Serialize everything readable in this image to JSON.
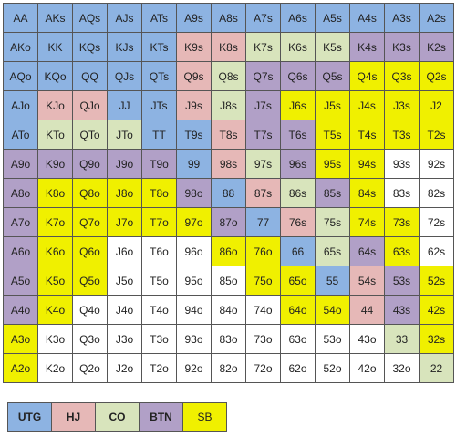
{
  "grid": {
    "rows": [
      [
        "AA",
        "AKs",
        "AQs",
        "AJs",
        "ATs",
        "A9s",
        "A8s",
        "A7s",
        "A6s",
        "A5s",
        "A4s",
        "A3s",
        "A2s"
      ],
      [
        "AKo",
        "KK",
        "KQs",
        "KJs",
        "KTs",
        "K9s",
        "K8s",
        "K7s",
        "K6s",
        "K5s",
        "K4s",
        "K3s",
        "K2s"
      ],
      [
        "AQo",
        "KQo",
        "QQ",
        "QJs",
        "QTs",
        "Q9s",
        "Q8s",
        "Q7s",
        "Q6s",
        "Q5s",
        "Q4s",
        "Q3s",
        "Q2s"
      ],
      [
        "AJo",
        "KJo",
        "QJo",
        "JJ",
        "JTs",
        "J9s",
        "J8s",
        "J7s",
        "J6s",
        "J5s",
        "J4s",
        "J3s",
        "J2"
      ],
      [
        "ATo",
        "KTo",
        "QTo",
        "JTo",
        "TT",
        "T9s",
        "T8s",
        "T7s",
        "T6s",
        "T5s",
        "T4s",
        "T3s",
        "T2s"
      ],
      [
        "A9o",
        "K9o",
        "Q9o",
        "J9o",
        "T9o",
        "99",
        "98s",
        "97s",
        "96s",
        "95s",
        "94s",
        "93s",
        "92s"
      ],
      [
        "A8o",
        "K8o",
        "Q8o",
        "J8o",
        "T8o",
        "98o",
        "88",
        "87s",
        "86s",
        "85s",
        "84s",
        "83s",
        "82s"
      ],
      [
        "A7o",
        "K7o",
        "Q7o",
        "J7o",
        "T7o",
        "97o",
        "87o",
        "77",
        "76s",
        "75s",
        "74s",
        "73s",
        "72s"
      ],
      [
        "A6o",
        "K6o",
        "Q6o",
        "J6o",
        "T6o",
        "96o",
        "86o",
        "76o",
        "66",
        "65s",
        "64s",
        "63s",
        "62s"
      ],
      [
        "A5o",
        "K5o",
        "Q5o",
        "J5o",
        "T5o",
        "95o",
        "85o",
        "75o",
        "65o",
        "55",
        "54s",
        "53s",
        "52s"
      ],
      [
        "A4o",
        "K4o",
        "Q4o",
        "J4o",
        "T4o",
        "94o",
        "84o",
        "74o",
        "64o",
        "54o",
        "44",
        "43s",
        "42s"
      ],
      [
        "A3o",
        "K3o",
        "Q3o",
        "J3o",
        "T3o",
        "93o",
        "83o",
        "73o",
        "63o",
        "53o",
        "43o",
        "33",
        "32s"
      ],
      [
        "A2o",
        "K2o",
        "Q2o",
        "J2o",
        "T2o",
        "92o",
        "82o",
        "72o",
        "62o",
        "52o",
        "42o",
        "32o",
        "22"
      ]
    ],
    "colors": [
      [
        "#8db3e2",
        "#8db3e2",
        "#8db3e2",
        "#8db3e2",
        "#8db3e2",
        "#8db3e2",
        "#8db3e2",
        "#8db3e2",
        "#8db3e2",
        "#8db3e2",
        "#8db3e2",
        "#8db3e2",
        "#8db3e2"
      ],
      [
        "#8db3e2",
        "#8db3e2",
        "#8db3e2",
        "#8db3e2",
        "#8db3e2",
        "#e6b8b7",
        "#e6b8b7",
        "#d8e4bc",
        "#d8e4bc",
        "#d8e4bc",
        "#b1a0c7",
        "#b1a0c7",
        "#b1a0c7"
      ],
      [
        "#8db3e2",
        "#8db3e2",
        "#8db3e2",
        "#8db3e2",
        "#8db3e2",
        "#e6b8b7",
        "#d8e4bc",
        "#b1a0c7",
        "#b1a0c7",
        "#b1a0c7",
        "#f0f000",
        "#f0f000",
        "#f0f000"
      ],
      [
        "#8db3e2",
        "#e6b8b7",
        "#e6b8b7",
        "#8db3e2",
        "#8db3e2",
        "#e6b8b7",
        "#d8e4bc",
        "#b1a0c7",
        "#f0f000",
        "#f0f000",
        "#f0f000",
        "#f0f000",
        "#f0f000"
      ],
      [
        "#8db3e2",
        "#d8e4bc",
        "#d8e4bc",
        "#d8e4bc",
        "#8db3e2",
        "#8db3e2",
        "#e6b8b7",
        "#b1a0c7",
        "#b1a0c7",
        "#f0f000",
        "#f0f000",
        "#f0f000",
        "#f0f000"
      ],
      [
        "#b1a0c7",
        "#b1a0c7",
        "#b1a0c7",
        "#b1a0c7",
        "#b1a0c7",
        "#8db3e2",
        "#e6b8b7",
        "#d8e4bc",
        "#b1a0c7",
        "#f0f000",
        "#f0f000",
        "#ffffff",
        "#ffffff"
      ],
      [
        "#b1a0c7",
        "#f0f000",
        "#f0f000",
        "#f0f000",
        "#f0f000",
        "#b1a0c7",
        "#8db3e2",
        "#e6b8b7",
        "#d8e4bc",
        "#b1a0c7",
        "#f0f000",
        "#ffffff",
        "#ffffff"
      ],
      [
        "#b1a0c7",
        "#f0f000",
        "#f0f000",
        "#f0f000",
        "#f0f000",
        "#f0f000",
        "#b1a0c7",
        "#8db3e2",
        "#e6b8b7",
        "#d8e4bc",
        "#f0f000",
        "#f0f000",
        "#ffffff"
      ],
      [
        "#b1a0c7",
        "#f0f000",
        "#f0f000",
        "#ffffff",
        "#ffffff",
        "#ffffff",
        "#f0f000",
        "#f0f000",
        "#8db3e2",
        "#d8e4bc",
        "#b1a0c7",
        "#f0f000",
        "#ffffff"
      ],
      [
        "#b1a0c7",
        "#f0f000",
        "#f0f000",
        "#ffffff",
        "#ffffff",
        "#ffffff",
        "#ffffff",
        "#f0f000",
        "#f0f000",
        "#8db3e2",
        "#e6b8b7",
        "#b1a0c7",
        "#f0f000"
      ],
      [
        "#b1a0c7",
        "#f0f000",
        "#ffffff",
        "#ffffff",
        "#ffffff",
        "#ffffff",
        "#ffffff",
        "#ffffff",
        "#f0f000",
        "#f0f000",
        "#e6b8b7",
        "#b1a0c7",
        "#f0f000"
      ],
      [
        "#f0f000",
        "#ffffff",
        "#ffffff",
        "#ffffff",
        "#ffffff",
        "#ffffff",
        "#ffffff",
        "#ffffff",
        "#ffffff",
        "#ffffff",
        "#ffffff",
        "#d8e4bc",
        "#f0f000"
      ],
      [
        "#f0f000",
        "#ffffff",
        "#ffffff",
        "#ffffff",
        "#ffffff",
        "#ffffff",
        "#ffffff",
        "#ffffff",
        "#ffffff",
        "#ffffff",
        "#ffffff",
        "#ffffff",
        "#d8e4bc"
      ]
    ]
  },
  "legend": [
    {
      "label": "UTG",
      "color": "#8db3e2"
    },
    {
      "label": "HJ",
      "color": "#e6b8b7"
    },
    {
      "label": "CO",
      "color": "#d8e4bc"
    },
    {
      "label": "BTN",
      "color": "#b1a0c7"
    },
    {
      "label": "SB",
      "color": "#f0f000"
    }
  ]
}
